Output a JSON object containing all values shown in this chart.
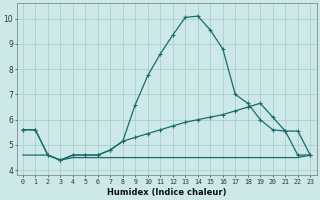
{
  "xlabel": "Humidex (Indice chaleur)",
  "background_color": "#cce8e8",
  "grid_color": "#aacece",
  "line_color": "#1a6b6b",
  "xlim": [
    -0.5,
    23.5
  ],
  "ylim": [
    3.8,
    10.6
  ],
  "xticks": [
    0,
    1,
    2,
    3,
    4,
    5,
    6,
    7,
    8,
    9,
    10,
    11,
    12,
    13,
    14,
    15,
    16,
    17,
    18,
    19,
    20,
    21,
    22,
    23
  ],
  "yticks": [
    4,
    5,
    6,
    7,
    8,
    9,
    10
  ],
  "line1_x": [
    0,
    1,
    2,
    3,
    4,
    5,
    6,
    7,
    8,
    9,
    10,
    11,
    12,
    13,
    14,
    15,
    16,
    17,
    18,
    19,
    20,
    21,
    22,
    23
  ],
  "line1_y": [
    5.6,
    5.6,
    4.6,
    4.4,
    4.6,
    4.6,
    4.6,
    4.8,
    5.15,
    6.6,
    7.75,
    8.6,
    9.35,
    10.05,
    10.1,
    9.55,
    8.8,
    7.0,
    6.65,
    6.0,
    5.6,
    5.55,
    4.6,
    4.6
  ],
  "line2_x": [
    0,
    1,
    2,
    3,
    4,
    5,
    6,
    7,
    8,
    9,
    10,
    11,
    12,
    13,
    14,
    15,
    16,
    17,
    18,
    19,
    20,
    21,
    22,
    23
  ],
  "line2_y": [
    5.6,
    5.6,
    4.6,
    4.4,
    4.6,
    4.6,
    4.6,
    4.8,
    5.15,
    5.3,
    5.45,
    5.6,
    5.75,
    5.9,
    6.0,
    6.1,
    6.2,
    6.35,
    6.5,
    6.65,
    6.1,
    5.55,
    5.55,
    4.6
  ],
  "line3_x": [
    0,
    1,
    2,
    3,
    4,
    5,
    6,
    7,
    8,
    9,
    10,
    11,
    12,
    13,
    14,
    15,
    16,
    17,
    18,
    19,
    20,
    21,
    22,
    23
  ],
  "line3_y": [
    4.6,
    4.6,
    4.6,
    4.4,
    4.5,
    4.5,
    4.5,
    4.5,
    4.5,
    4.5,
    4.5,
    4.5,
    4.5,
    4.5,
    4.5,
    4.5,
    4.5,
    4.5,
    4.5,
    4.5,
    4.5,
    4.5,
    4.5,
    4.6
  ]
}
